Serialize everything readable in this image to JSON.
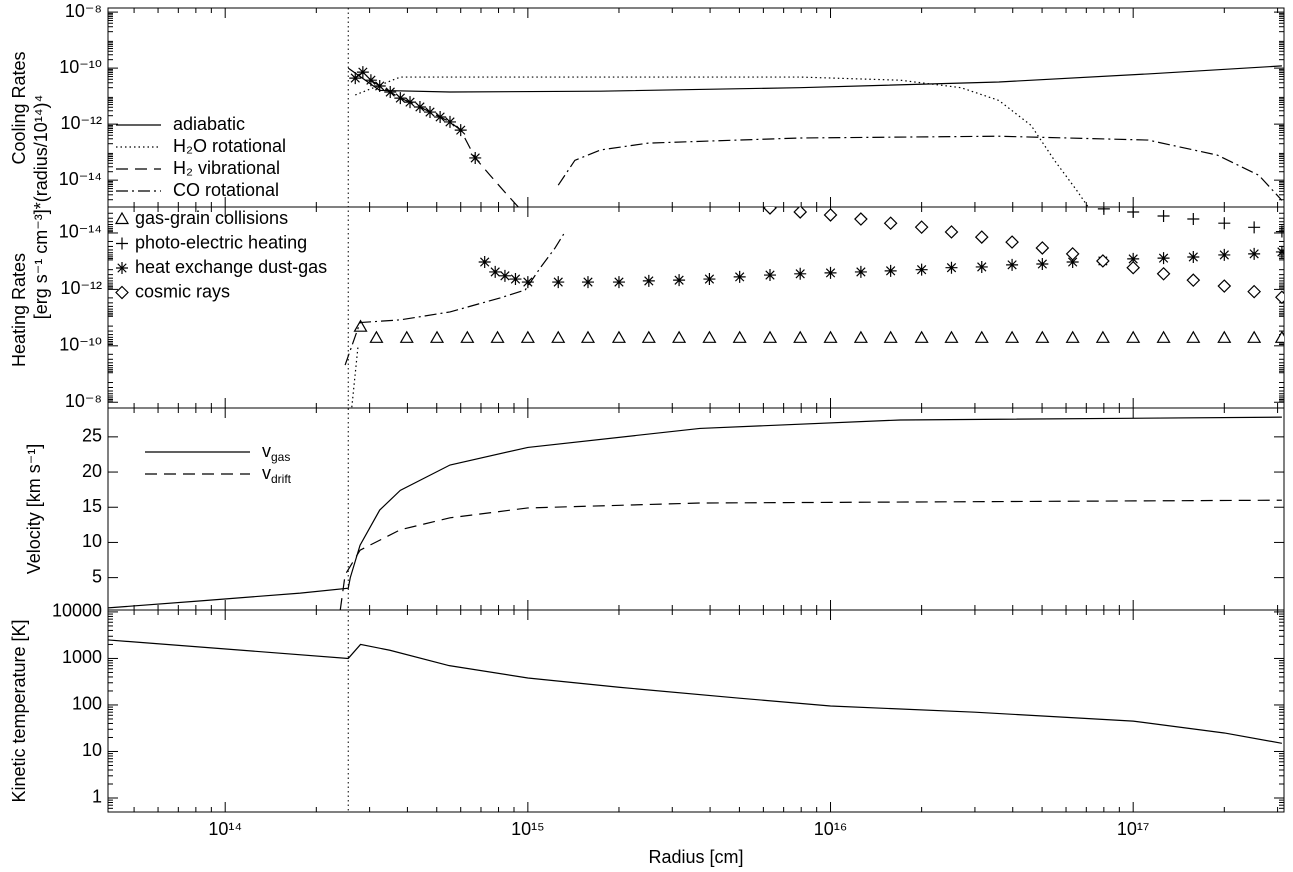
{
  "x_axis": {
    "label": "Radius [cm]",
    "log": true,
    "xlim": [
      41000000000000.0,
      3.15e+17
    ],
    "vline": 255000000000000.0,
    "xticks": [
      {
        "value": 100000000000000.0,
        "label": "10¹⁴"
      },
      {
        "value": 1000000000000000.0,
        "label": "10¹⁵"
      },
      {
        "value": 1e+16,
        "label": "10¹⁶"
      },
      {
        "value": 1e+17,
        "label": "10¹⁷"
      }
    ]
  },
  "chart_data": [
    {
      "type": "line",
      "ylabel": "Cooling Rates",
      "ylabel_units": "[erg s⁻¹ cm⁻³]*(radius/10¹⁴)⁴",
      "ylog": true,
      "legend": "lower left",
      "ylim": [
        1.1e-15,
        1.4e-08
      ],
      "yticks": [
        {
          "value": 1e-08,
          "label": "10⁻⁸"
        },
        {
          "value": 1e-10,
          "label": "10⁻¹⁰"
        },
        {
          "value": 1e-12,
          "label": "10⁻¹²"
        },
        {
          "value": 1e-14,
          "label": "10⁻¹⁴"
        }
      ],
      "series": [
        {
          "name": "adiabatic",
          "color": "#000",
          "line": "solid",
          "x": [
            255000000000000.0,
            324000000000000.0,
            553000000000000.0,
            1740000000000000.0,
            7900000000000000.0,
            3.6e+16,
            1.12e+17,
            3.1e+17
          ],
          "values": [
            1e-10,
            1.6e-11,
            1.4e-11,
            1.5e-11,
            2e-11,
            3.2e-11,
            6.2e-11,
            1.2e-10
          ]
        },
        {
          "name": "H₂O rotational",
          "color": "#000",
          "line": "dotted",
          "x": [
            269000000000000.0,
            379000000000000.0,
            7900000000000000.0,
            1.7e+16,
            2.7e+16,
            3.6e+16,
            4.6e+16,
            5.5e+16,
            6.5e+16,
            7.1e+16
          ],
          "values": [
            1.1e-11,
            4.8e-11,
            4.8e-11,
            3.7e-11,
            2e-11,
            7e-12,
            9e-13,
            5e-14,
            4.4e-15,
            1.1e-15
          ]
        },
        {
          "name": "H₂ vibrational",
          "color": "#000",
          "line": "dashed",
          "x": [
            269000000000000.0,
            285000000000000.0,
            303000000000000.0,
            324000000000000.0,
            351000000000000.0,
            379000000000000.0,
            408000000000000.0,
            440000000000000.0,
            475000000000000.0,
            513000000000000.0,
            553000000000000.0,
            600000000000000.0,
            670000000000000.0,
            750000000000000.0,
            840000000000000.0,
            930000000000000.0
          ],
          "values": [
            4.4e-11,
            7.2e-11,
            3.7e-11,
            2.3e-11,
            1.4e-11,
            8.5e-12,
            6.1e-12,
            4.1e-12,
            2.7e-12,
            1.8e-12,
            1.2e-12,
            6.1e-13,
            6.2e-14,
            1.5e-14,
            3.7e-15,
            1.1e-15
          ]
        },
        {
          "name": "CO rotational",
          "color": "#000",
          "line": "dashdot",
          "x": [
            1260000000000000.0,
            1430000000000000.0,
            1740000000000000.0,
            2500000000000000.0,
            7900000000000000.0,
            3.6e+16,
            1.12e+17,
            1.9e+17,
            2.6e+17,
            3.1e+17
          ],
          "values": [
            6.6e-15,
            5.1e-14,
            1.2e-13,
            2.1e-13,
            3.2e-13,
            3.7e-13,
            2.7e-13,
            7.8e-14,
            1.5e-14,
            1.9e-15
          ]
        },
        {
          "color": "#000",
          "marker": "star",
          "x": [
            269000000000000.0,
            285000000000000.0,
            303000000000000.0,
            324000000000000.0,
            351000000000000.0,
            379000000000000.0,
            408000000000000.0,
            440000000000000.0,
            475000000000000.0,
            513000000000000.0,
            553000000000000.0,
            600000000000000.0,
            670000000000000.0
          ],
          "values": [
            4.4e-11,
            7.2e-11,
            3.7e-11,
            2.3e-11,
            1.4e-11,
            8.5e-12,
            6.1e-12,
            4.1e-12,
            2.7e-12,
            1.8e-12,
            1.2e-12,
            6.1e-13,
            6.2e-14
          ]
        }
      ]
    },
    {
      "type": "line",
      "ylabel": "Heating Rates",
      "ylog": true,
      "legend": "upper left",
      "ylim": [
        1.6e-08,
        1.2e-15
      ],
      "yticks": [
        {
          "value": 1e-14,
          "label": "10⁻¹⁴"
        },
        {
          "value": 1e-12,
          "label": "10⁻¹²"
        },
        {
          "value": 1e-10,
          "label": "10⁻¹⁰"
        },
        {
          "value": 1e-08,
          "label": "10⁻⁸"
        }
      ],
      "series": [
        {
          "name": "gas-grain collisions",
          "color": "#000",
          "marker": "triangle",
          "x": [
            280000000000000.0,
            316000000000000.0,
            398000000000000.0,
            501000000000000.0,
            631000000000000.0,
            794000000000000.0,
            1000000000000000.0,
            1260000000000000.0,
            1580000000000000.0,
            2000000000000000.0,
            2510000000000000.0,
            3160000000000000.0,
            3980000000000000.0,
            5010000000000000.0,
            6310000000000000.0,
            7940000000000000.0,
            1e+16,
            1.26e+16,
            1.58e+16,
            2e+16,
            2.51e+16,
            3.16e+16,
            3.98e+16,
            5.01e+16,
            6.31e+16,
            7.94e+16,
            1e+17,
            1.26e+17,
            1.58e+17,
            2e+17,
            2.51e+17,
            3.1e+17
          ],
          "values": [
            2.1e-11,
            5.2e-11,
            5.2e-11,
            5.2e-11,
            5.2e-11,
            5.2e-11,
            5.2e-11,
            5.2e-11,
            5.2e-11,
            5.2e-11,
            5.2e-11,
            5.2e-11,
            5.2e-11,
            5.2e-11,
            5.2e-11,
            5.2e-11,
            5.2e-11,
            5.2e-11,
            5.2e-11,
            5.2e-11,
            5.2e-11,
            5.2e-11,
            5.2e-11,
            5.2e-11,
            5.2e-11,
            5.2e-11,
            5.2e-11,
            5.2e-11,
            5.2e-11,
            5.2e-11,
            5.2e-11,
            5.2e-11
          ]
        },
        {
          "name": "photo-electric heating",
          "color": "#000",
          "marker": "plus",
          "x": [
            8e+16,
            1e+17,
            1.26e+17,
            1.58e+17,
            2e+17,
            2.51e+17,
            3.1e+17
          ],
          "values": [
            1.4e-15,
            1.8e-15,
            2.5e-15,
            3.2e-15,
            4.5e-15,
            6.3e-15,
            8.9e-15
          ]
        },
        {
          "name": "heat exchange dust-gas",
          "color": "#000",
          "marker": "star",
          "x": [
            720000000000000.0,
            780000000000000.0,
            840000000000000.0,
            910000000000000.0,
            1000000000000000.0,
            1260000000000000.0,
            1580000000000000.0,
            2000000000000000.0,
            2510000000000000.0,
            3160000000000000.0,
            3980000000000000.0,
            5010000000000000.0,
            6310000000000000.0,
            7940000000000000.0,
            1e+16,
            1.26e+16,
            1.58e+16,
            2e+16,
            2.51e+16,
            3.16e+16,
            3.98e+16,
            5.01e+16,
            6.31e+16,
            7.94e+16,
            1e+17,
            1.26e+17,
            1.58e+17,
            2e+17,
            2.51e+17,
            3.1e+17
          ],
          "values": [
            1.07e-13,
            2.4e-13,
            3.3e-13,
            4.3e-13,
            5.5e-13,
            5.5e-13,
            5.5e-13,
            5.5e-13,
            5e-13,
            4.7e-13,
            4.3e-13,
            3.6e-13,
            3.1e-13,
            2.8e-13,
            2.6e-13,
            2.4e-13,
            2.2e-13,
            2e-13,
            1.7e-13,
            1.6e-13,
            1.35e-13,
            1.26e-13,
            1.07e-13,
            9.8e-14,
            8.3e-14,
            7.8e-14,
            7.1e-14,
            6e-14,
            5.5e-14,
            4.7e-14
          ]
        },
        {
          "name": "cosmic rays",
          "color": "#000",
          "marker": "diamond",
          "x": [
            6310000000000000.0,
            7940000000000000.0,
            1e+16,
            1.26e+16,
            1.58e+16,
            2e+16,
            2.51e+16,
            3.16e+16,
            3.98e+16,
            5.01e+16,
            6.31e+16,
            7.94e+16,
            1e+17,
            1.26e+17,
            1.58e+17,
            2e+17,
            2.51e+17,
            3.1e+17
          ],
          "values": [
            1.3e-15,
            1.8e-15,
            2.3e-15,
            3.2e-15,
            4.5e-15,
            6.2e-15,
            9.2e-15,
            1.4e-14,
            2.1e-14,
            3.4e-14,
            5.5e-14,
            9.8e-14,
            1.7e-13,
            2.8e-13,
            4.7e-13,
            7.6e-13,
            1.2e-12,
            1.9e-12
          ]
        },
        {
          "color": "#000",
          "line": "dashdot",
          "x": [
            249000000000000.0,
            279000000000000.0,
            379000000000000.0,
            553000000000000.0,
            810000000000000.0,
            980000000000000.0,
            1100000000000000.0,
            1230000000000000.0,
            1320000000000000.0
          ],
          "values": [
            4.8e-10,
            1.5e-11,
            1.2e-11,
            6.3e-12,
            2e-12,
            1.05e-12,
            1.7e-13,
            3.4e-14,
            1e-14
          ]
        },
        {
          "color": "#000",
          "line": "dotted",
          "x": [
            262000000000000.0,
            275000000000000.0
          ],
          "values": [
            1.5e-08,
            9.3e-11
          ]
        }
      ]
    },
    {
      "type": "line",
      "ylabel": "Velocity [km s⁻¹]",
      "ylog": false,
      "legend": "upper left",
      "ylim": [
        0.4,
        29.1
      ],
      "yticks": [
        5,
        10,
        15,
        20,
        25
      ],
      "series": [
        {
          "name": "v",
          "subscript": "gas",
          "color": "#000",
          "line": "solid",
          "x": [
            41000000000000.0,
            83000000000000.0,
            177000000000000.0,
            255000000000000.0,
            259000000000000.0,
            279000000000000.0,
            324000000000000.0,
            379000000000000.0,
            553000000000000.0,
            1000000000000000.0,
            3700000000000000.0,
            1.7e+16,
            3.1e+17
          ],
          "values": [
            0.7,
            1.7,
            2.8,
            3.5,
            5,
            9.6,
            14.6,
            17.4,
            21,
            23.5,
            26.2,
            27.4,
            27.8
          ]
        },
        {
          "name": "v",
          "subscript": "drift",
          "color": "#000",
          "line": "dashed",
          "x": [
            240000000000000.0,
            249000000000000.0,
            279000000000000.0,
            379000000000000.0,
            553000000000000.0,
            1000000000000000.0,
            3700000000000000.0,
            3.1e+17
          ],
          "values": [
            0.4,
            5.4,
            8.9,
            11.8,
            13.5,
            14.9,
            15.6,
            16
          ]
        }
      ]
    },
    {
      "type": "line",
      "ylabel": "Kinetic temperature [K]",
      "ylog": true,
      "ylim": [
        0.5,
        11000
      ],
      "yticks": [
        10000,
        1000,
        100,
        10,
        1
      ],
      "series": [
        {
          "color": "#000",
          "line": "solid",
          "x": [
            41000000000000.0,
            255000000000000.0,
            280000000000000.0,
            350000000000000.0,
            550000000000000.0,
            1000000000000000.0,
            2000000000000000.0,
            5000000000000000.0,
            1e+16,
            3e+16,
            1e+17,
            2e+17,
            3.1e+17
          ],
          "values": [
            2500,
            1000,
            2000,
            1500,
            700,
            380,
            240,
            140,
            95,
            70,
            45,
            25,
            15
          ]
        }
      ]
    }
  ]
}
